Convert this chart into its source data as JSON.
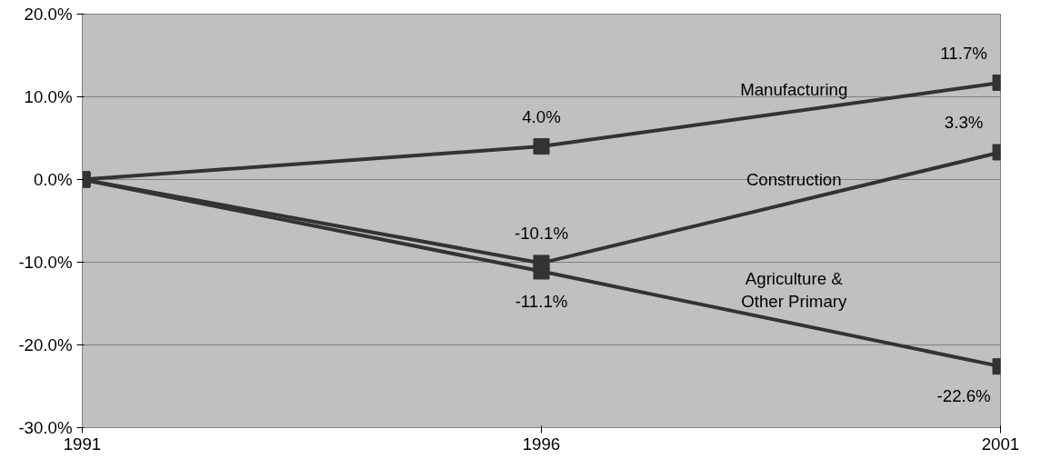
{
  "chart_data": {
    "type": "line",
    "categories": [
      "1991",
      "1996",
      "2001"
    ],
    "series": [
      {
        "name": "Manufacturing",
        "color": "#333333",
        "values": [
          0,
          4.0,
          11.7
        ],
        "value_labels": [
          null,
          "4.0%",
          "11.7%"
        ]
      },
      {
        "name": "Construction",
        "color": "#333333",
        "values": [
          0,
          -10.1,
          3.3
        ],
        "value_labels": [
          null,
          "-10.1%",
          "3.3%"
        ]
      },
      {
        "name": "Agriculture & Other Primary",
        "color": "#333333",
        "values": [
          0,
          -11.1,
          -22.6
        ],
        "value_labels": [
          null,
          "-11.1%",
          "-22.6%"
        ]
      }
    ],
    "ylim": [
      -30,
      20
    ],
    "yticks": [
      {
        "value": -30,
        "label": "-30.0%"
      },
      {
        "value": -20,
        "label": "-20.0%"
      },
      {
        "value": -10,
        "label": "-10.0%"
      },
      {
        "value": 0,
        "label": "0.0%"
      },
      {
        "value": 10,
        "label": "10.0%"
      },
      {
        "value": 20,
        "label": "20.0%"
      }
    ],
    "grid": "y",
    "marker": "square",
    "line_style": "solid"
  }
}
